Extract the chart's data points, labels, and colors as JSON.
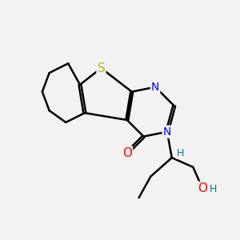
{
  "bg_color": "#f2f2f2",
  "atom_colors": {
    "S": "#b8b800",
    "N": "#0000ff",
    "O": "#ff0000",
    "C": "#000000",
    "H": "#008080"
  },
  "bond_color": "#000000",
  "bond_width": 1.8,
  "figsize": [
    3.0,
    3.0
  ],
  "dpi": 100
}
